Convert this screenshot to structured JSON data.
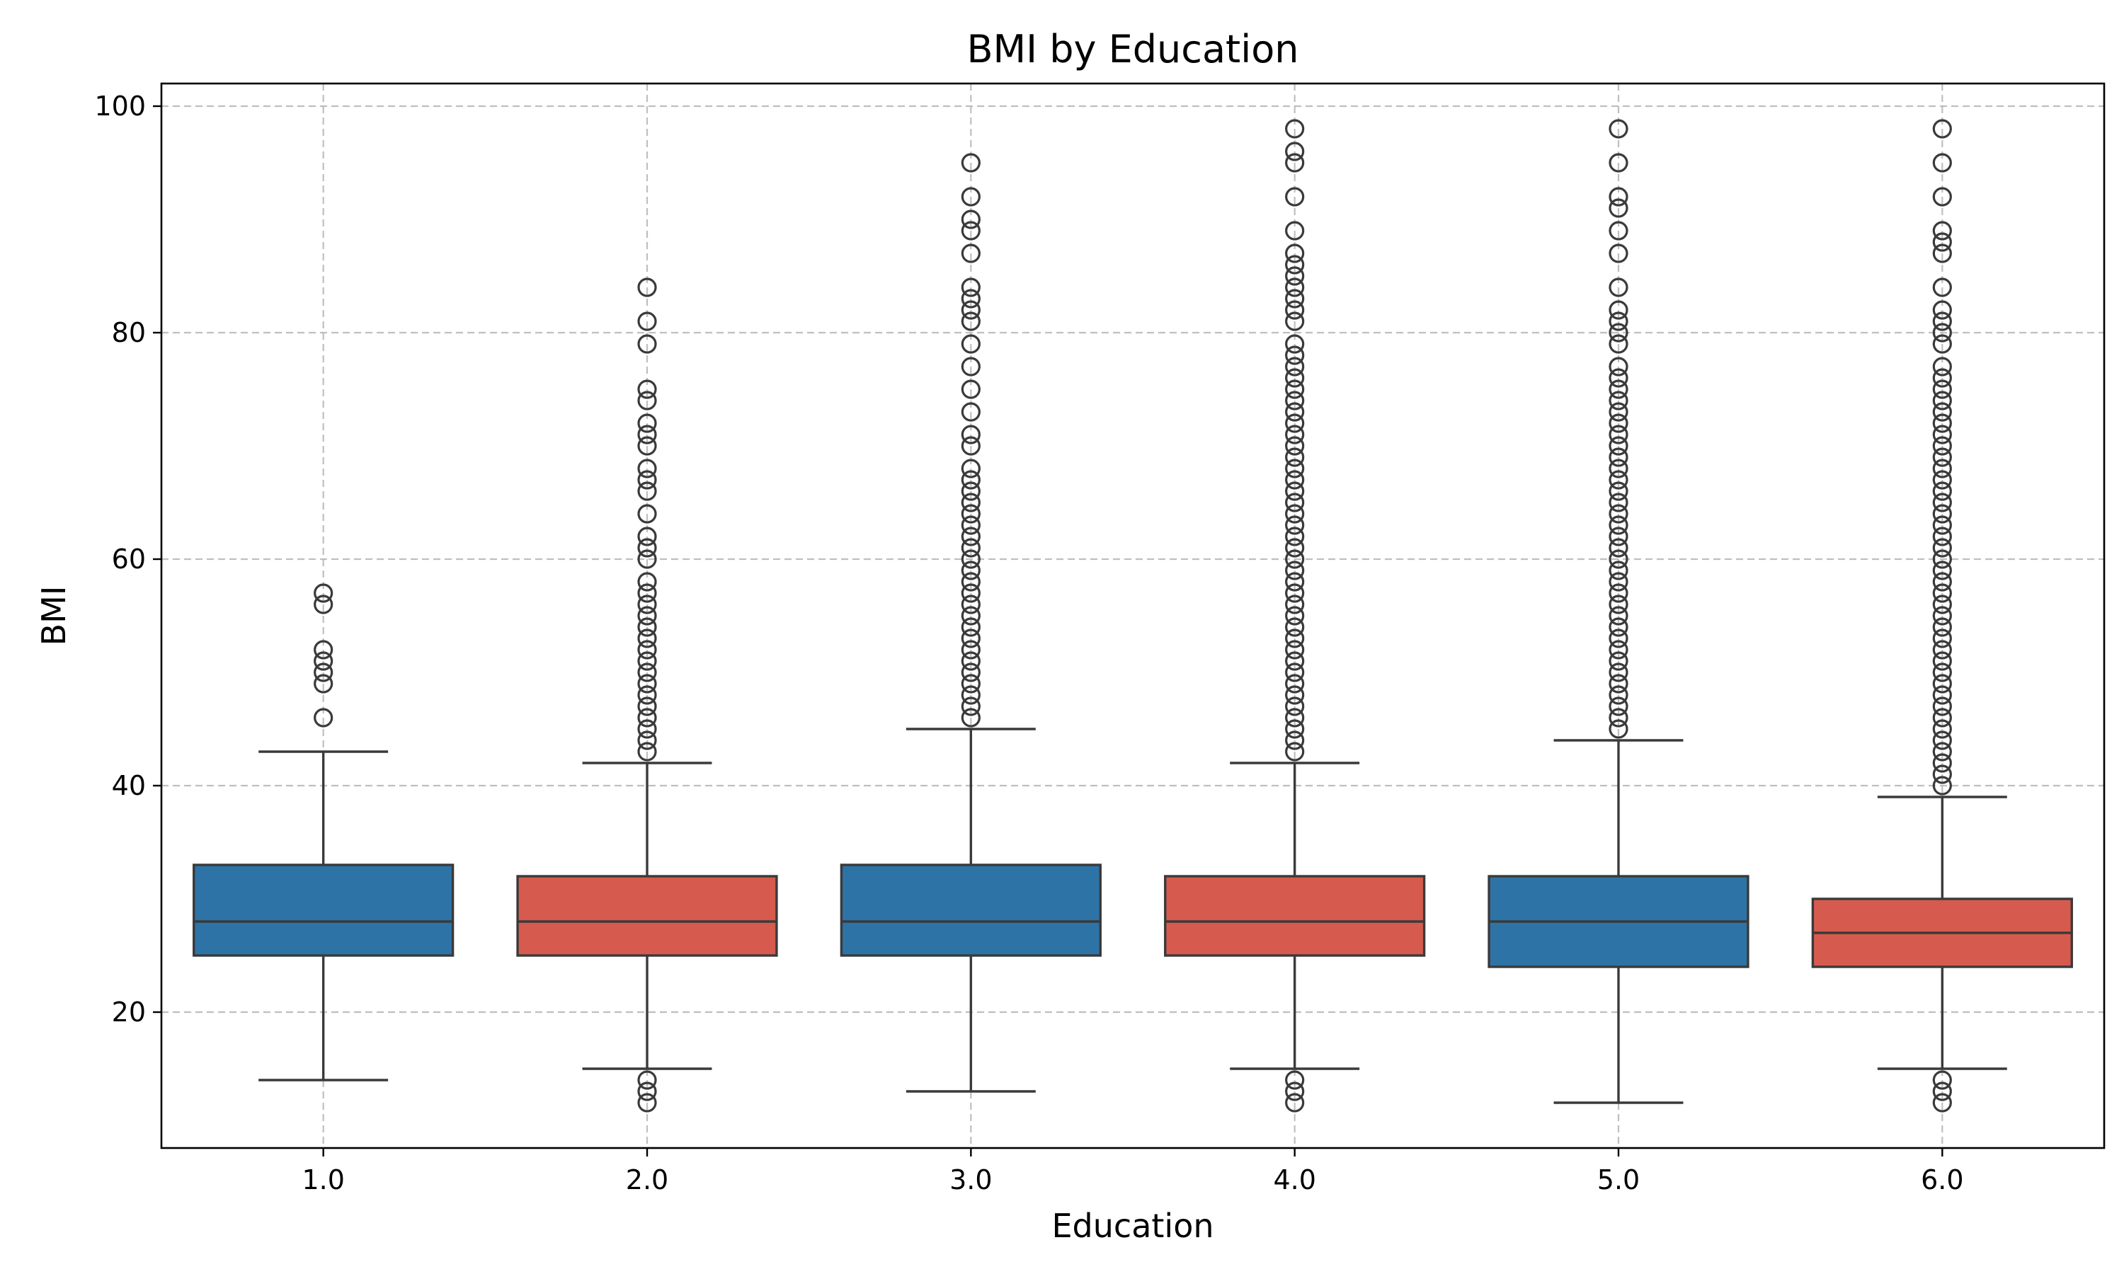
{
  "chart_data": {
    "type": "boxplot",
    "title": "BMI by Education",
    "xlabel": "Education",
    "ylabel": "BMI",
    "ylim": [
      8,
      102
    ],
    "yticks": [
      20,
      40,
      60,
      80,
      100
    ],
    "grid": true,
    "colors": {
      "box_a": "#2e73a6",
      "box_b": "#d65b4e",
      "line": "#3a3a3a",
      "grid": "#b0b0b0"
    },
    "categories": [
      "1.0",
      "2.0",
      "3.0",
      "4.0",
      "5.0",
      "6.0"
    ],
    "boxes": [
      {
        "category": "1.0",
        "whisker_low": 14,
        "q1": 25,
        "median": 28,
        "q3": 33,
        "whisker_high": 43,
        "color": "#2e73a6",
        "outliers": [
          46,
          49,
          50,
          51,
          52,
          56,
          57
        ]
      },
      {
        "category": "2.0",
        "whisker_low": 15,
        "q1": 25,
        "median": 28,
        "q3": 32,
        "whisker_high": 42,
        "color": "#d65b4e",
        "outliers": [
          12,
          13,
          14,
          43,
          44,
          45,
          46,
          47,
          48,
          49,
          50,
          51,
          52,
          53,
          54,
          55,
          56,
          57,
          58,
          60,
          61,
          62,
          64,
          66,
          67,
          68,
          70,
          71,
          72,
          74,
          75,
          79,
          81,
          84
        ]
      },
      {
        "category": "3.0",
        "whisker_low": 13,
        "q1": 25,
        "median": 28,
        "q3": 33,
        "whisker_high": 45,
        "color": "#2e73a6",
        "outliers": [
          46,
          47,
          48,
          49,
          50,
          51,
          52,
          53,
          54,
          55,
          56,
          57,
          58,
          59,
          60,
          61,
          62,
          63,
          64,
          65,
          66,
          67,
          68,
          70,
          71,
          73,
          75,
          77,
          79,
          81,
          82,
          83,
          84,
          87,
          89,
          90,
          92,
          95
        ]
      },
      {
        "category": "4.0",
        "whisker_low": 15,
        "q1": 25,
        "median": 28,
        "q3": 32,
        "whisker_high": 42,
        "color": "#d65b4e",
        "outliers": [
          12,
          13,
          14,
          43,
          44,
          45,
          46,
          47,
          48,
          49,
          50,
          51,
          52,
          53,
          54,
          55,
          56,
          57,
          58,
          59,
          60,
          61,
          62,
          63,
          64,
          65,
          66,
          67,
          68,
          69,
          70,
          71,
          72,
          73,
          74,
          75,
          76,
          77,
          78,
          79,
          81,
          82,
          83,
          84,
          85,
          86,
          87,
          89,
          92,
          95,
          96,
          98
        ]
      },
      {
        "category": "5.0",
        "whisker_low": 12,
        "q1": 24,
        "median": 28,
        "q3": 32,
        "whisker_high": 44,
        "color": "#2e73a6",
        "outliers": [
          45,
          46,
          47,
          48,
          49,
          50,
          51,
          52,
          53,
          54,
          55,
          56,
          57,
          58,
          59,
          60,
          61,
          62,
          63,
          64,
          65,
          66,
          67,
          68,
          69,
          70,
          71,
          72,
          73,
          74,
          75,
          76,
          77,
          79,
          80,
          81,
          82,
          84,
          87,
          89,
          91,
          92,
          95,
          98
        ]
      },
      {
        "category": "6.0",
        "whisker_low": 15,
        "q1": 24,
        "median": 27,
        "q3": 30,
        "whisker_high": 39,
        "color": "#d65b4e",
        "outliers": [
          12,
          13,
          14,
          40,
          41,
          42,
          43,
          44,
          45,
          46,
          47,
          48,
          49,
          50,
          51,
          52,
          53,
          54,
          55,
          56,
          57,
          58,
          59,
          60,
          61,
          62,
          63,
          64,
          65,
          66,
          67,
          68,
          69,
          70,
          71,
          72,
          73,
          74,
          75,
          76,
          77,
          79,
          80,
          81,
          82,
          84,
          87,
          88,
          89,
          92,
          95,
          98
        ]
      }
    ]
  }
}
